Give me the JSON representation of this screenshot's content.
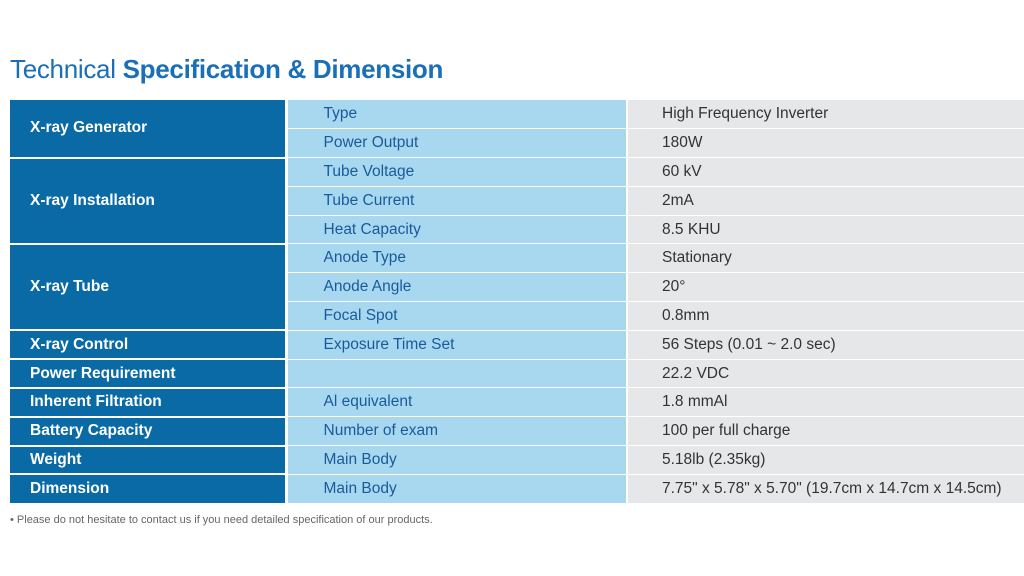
{
  "title": {
    "part1": "Technical ",
    "part2": "Specification & Dimension"
  },
  "rows": [
    {
      "category": "X-ray Generator",
      "item": "Type",
      "value": "High Frequency Inverter"
    },
    {
      "item": "Power Output",
      "value": "180W"
    },
    {
      "category": "X-ray Installation",
      "item": "Tube Voltage",
      "value": "60 kV"
    },
    {
      "item": "Tube Current",
      "value": "2mA"
    },
    {
      "item": "Heat Capacity",
      "value": "8.5 KHU"
    },
    {
      "category": "X-ray Tube",
      "item": "Anode Type",
      "value": "Stationary"
    },
    {
      "item": "Anode Angle",
      "value": "20°"
    },
    {
      "item": "Focal Spot",
      "value": "0.8mm"
    },
    {
      "category": "X-ray Control",
      "item": "Exposure Time Set",
      "value": "56 Steps (0.01 ~ 2.0 sec)"
    },
    {
      "category": "Power Requirement",
      "item": "",
      "value": "22.2 VDC"
    },
    {
      "category": "Inherent Filtration",
      "item": "Al equivalent",
      "value": "1.8 mmAl"
    },
    {
      "category": "Battery Capacity",
      "item": "Number of exam",
      "value": "100 per full charge"
    },
    {
      "category": "Weight",
      "item": "Main Body",
      "value": "5.18lb (2.35kg)"
    },
    {
      "category": "Dimension",
      "item": "Main Body",
      "value": "7.75\" x 5.78\" x 5.70\" (19.7cm x 14.7cm x 14.5cm)"
    }
  ],
  "footnote": "• Please do not hesitate to contact us if you need detailed specification of our products."
}
